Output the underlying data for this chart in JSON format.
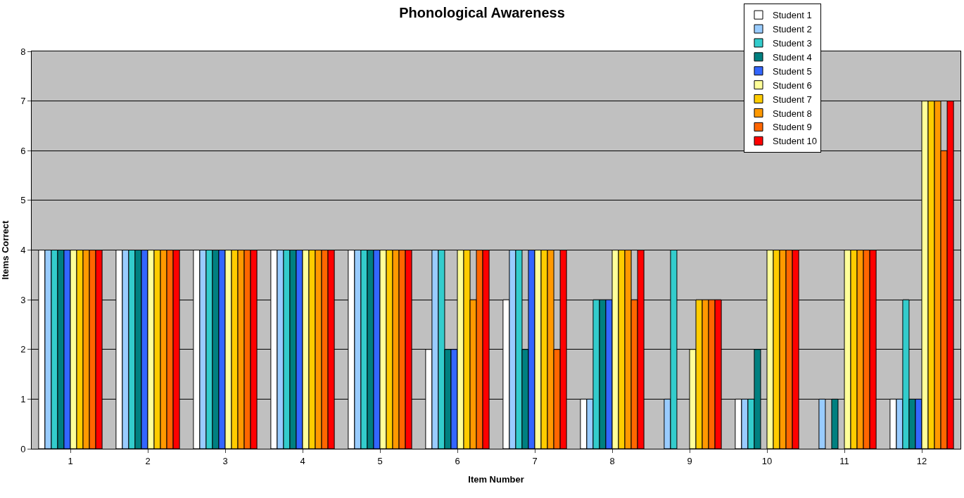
{
  "chart_data": {
    "type": "bar",
    "title": "Phonological Awareness",
    "xlabel": "Item Number",
    "ylabel": "Items Correct",
    "categories": [
      "1",
      "2",
      "3",
      "4",
      "5",
      "6",
      "7",
      "8",
      "9",
      "10",
      "11",
      "12"
    ],
    "series": [
      {
        "name": "Student 1",
        "color": "#ffffff",
        "values": [
          4,
          4,
          4,
          4,
          4,
          2,
          3,
          1,
          0,
          1,
          0,
          1
        ]
      },
      {
        "name": "Student 2",
        "color": "#99ccff",
        "values": [
          4,
          4,
          4,
          4,
          4,
          4,
          4,
          1,
          1,
          1,
          1,
          1
        ]
      },
      {
        "name": "Student 3",
        "color": "#33cccc",
        "values": [
          4,
          4,
          4,
          4,
          4,
          4,
          4,
          3,
          4,
          1,
          0,
          3
        ]
      },
      {
        "name": "Student 4",
        "color": "#008080",
        "values": [
          4,
          4,
          4,
          4,
          4,
          2,
          2,
          3,
          0,
          2,
          1,
          1
        ]
      },
      {
        "name": "Student 5",
        "color": "#3366ff",
        "values": [
          4,
          4,
          4,
          4,
          4,
          2,
          4,
          3,
          0,
          0,
          0,
          1
        ]
      },
      {
        "name": "Student 6",
        "color": "#ffff99",
        "values": [
          4,
          4,
          4,
          4,
          4,
          4,
          4,
          4,
          2,
          4,
          4,
          7
        ]
      },
      {
        "name": "Student 7",
        "color": "#ffcc00",
        "values": [
          4,
          4,
          4,
          4,
          4,
          4,
          4,
          4,
          3,
          4,
          4,
          7
        ]
      },
      {
        "name": "Student 8",
        "color": "#ff9900",
        "values": [
          4,
          4,
          4,
          4,
          4,
          3,
          4,
          4,
          3,
          4,
          4,
          7
        ]
      },
      {
        "name": "Student 9",
        "color": "#ff6600",
        "values": [
          4,
          4,
          4,
          4,
          4,
          4,
          2,
          3,
          3,
          4,
          4,
          6
        ]
      },
      {
        "name": "Student 10",
        "color": "#ff0000",
        "values": [
          4,
          4,
          4,
          4,
          4,
          4,
          4,
          4,
          3,
          4,
          4,
          7
        ]
      }
    ],
    "ylim": [
      0,
      8
    ],
    "yticks": [
      0,
      1,
      2,
      3,
      4,
      5,
      6,
      7,
      8
    ],
    "grid": "y",
    "legend": "top right"
  }
}
